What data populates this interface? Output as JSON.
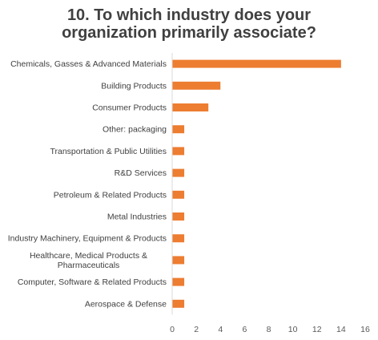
{
  "chart_data": {
    "type": "bar",
    "orientation": "horizontal",
    "title_lines": [
      "10. To which industry does your",
      "organization primarily associate?"
    ],
    "categories": [
      "Chemicals, Gasses & Advanced Materials",
      "Building Products",
      "Consumer Products",
      "Other: packaging",
      "Transportation & Public Utilities",
      "R&D Services",
      "Petroleum & Related Products",
      "Metal Industries",
      "Industry Machinery, Equipment & Products",
      "Healthcare, Medical Products & Pharmaceuticals",
      "Computer, Software & Related Products",
      "Aerospace & Defense"
    ],
    "values": [
      14,
      4,
      3,
      1,
      1,
      1,
      1,
      1,
      1,
      1,
      1,
      1
    ],
    "xlim": [
      0,
      16
    ],
    "x_ticks": [
      "0",
      "2",
      "4",
      "6",
      "8",
      "10",
      "12",
      "14",
      "16"
    ],
    "xlabel": "",
    "ylabel": "",
    "grid": false,
    "legend": "none",
    "bar_color": "#ED7D31"
  }
}
